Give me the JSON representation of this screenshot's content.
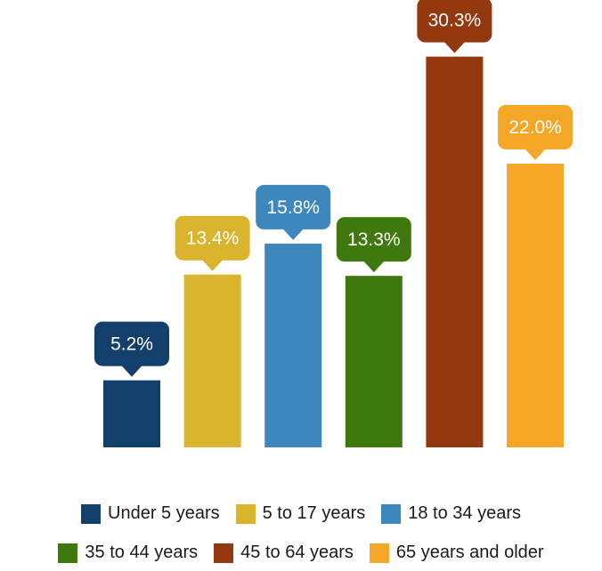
{
  "chart_data": {
    "type": "bar",
    "categories": [
      "Under 5 years",
      "5 to 17 years",
      "18 to 34 years",
      "35 to 44 years",
      "45 to 64 years",
      "65 years and older"
    ],
    "values": [
      5.2,
      13.4,
      15.8,
      13.3,
      30.3,
      22.0
    ],
    "data_labels": [
      "5.2%",
      "13.4%",
      "15.8%",
      "13.3%",
      "30.3%",
      "22.0%"
    ],
    "colors": [
      "#123f6b",
      "#dab42c",
      "#3e87bd",
      "#3f790d",
      "#93380f",
      "#f4a726"
    ],
    "legend": [
      "Under 5 years",
      "5 to 17 years",
      "18 to 34 years",
      "35 to 44 years",
      "45 to 64 years",
      "65 years and older"
    ],
    "legend_position": "bottom",
    "ylim": [
      0,
      32
    ],
    "grid": false,
    "title": "",
    "xlabel": "",
    "ylabel": ""
  }
}
